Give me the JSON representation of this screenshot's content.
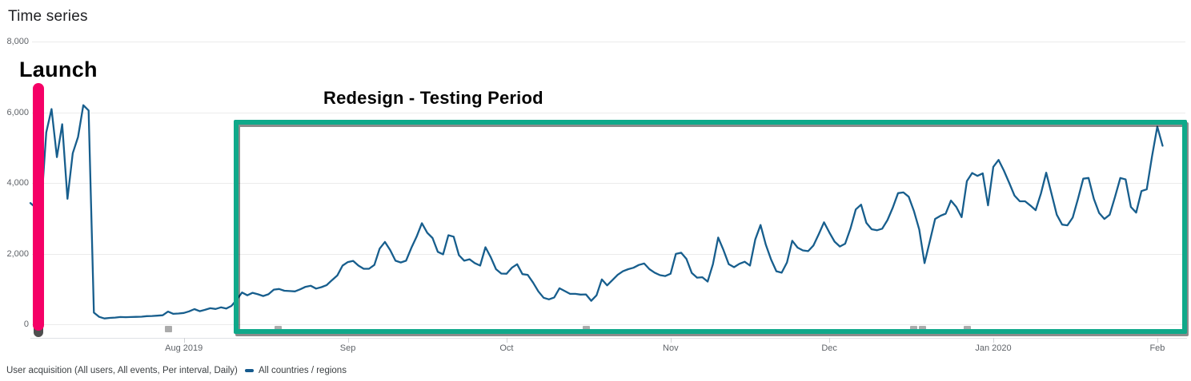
{
  "title": "Time series",
  "annotations": {
    "launch_label": "Launch",
    "launch_color": "#F50066",
    "redesign_label": "Redesign - Testing Period",
    "redesign_color": "#0FA98A",
    "note_markers_x": [
      210,
      347,
      732,
      1141,
      1152,
      1208
    ]
  },
  "footer": {
    "report_label": "User acquisition (All users, All events, Per interval, Daily)",
    "legend_label": "All countries / regions",
    "legend_color": "#155A8D"
  },
  "chart_data": {
    "type": "line",
    "title": "Time series",
    "series_name": "All countries / regions",
    "line_color": "#175E8D",
    "interval": "daily",
    "start_date": "2019-07-03",
    "end_date": "2020-02-02",
    "ylim": [
      0,
      8000
    ],
    "grid": true,
    "legend_position": "bottom",
    "yaxis_ticks": [
      {
        "label": "8,000",
        "value": 8000
      },
      {
        "label": "6,000",
        "value": 6000
      },
      {
        "label": "4,000",
        "value": 4000
      },
      {
        "label": "2,000",
        "value": 2000
      },
      {
        "label": "0",
        "value": 0
      }
    ],
    "xaxis_ticks": [
      {
        "label": "Aug 2019",
        "day_offset": 29
      },
      {
        "label": "Sep",
        "day_offset": 60
      },
      {
        "label": "Oct",
        "day_offset": 90
      },
      {
        "label": "Nov",
        "day_offset": 121
      },
      {
        "label": "Dec",
        "day_offset": 151
      },
      {
        "label": "Jan 2020",
        "day_offset": 182
      },
      {
        "label": "Feb",
        "day_offset": 213
      }
    ],
    "values": [
      3430,
      3300,
      3230,
      5430,
      6090,
      4730,
      5660,
      3550,
      4840,
      5300,
      6200,
      6050,
      330,
      210,
      165,
      180,
      190,
      205,
      200,
      205,
      210,
      215,
      230,
      235,
      245,
      255,
      360,
      295,
      305,
      320,
      365,
      430,
      370,
      410,
      455,
      435,
      480,
      445,
      520,
      700,
      900,
      820,
      890,
      850,
      800,
      850,
      980,
      1000,
      950,
      940,
      930,
      990,
      1060,
      1090,
      1010,
      1050,
      1110,
      1250,
      1380,
      1660,
      1760,
      1795,
      1660,
      1570,
      1570,
      1680,
      2140,
      2330,
      2100,
      1800,
      1750,
      1800,
      2160,
      2480,
      2860,
      2590,
      2440,
      2050,
      1980,
      2520,
      2480,
      1955,
      1800,
      1840,
      1730,
      1660,
      2180,
      1900,
      1560,
      1435,
      1430,
      1600,
      1700,
      1420,
      1400,
      1180,
      930,
      750,
      705,
      760,
      1020,
      940,
      860,
      860,
      840,
      845,
      665,
      820,
      1270,
      1100,
      1250,
      1400,
      1500,
      1560,
      1600,
      1680,
      1720,
      1560,
      1460,
      1390,
      1365,
      1430,
      1990,
      2025,
      1850,
      1450,
      1320,
      1330,
      1210,
      1700,
      2455,
      2100,
      1700,
      1615,
      1710,
      1770,
      1660,
      2400,
      2810,
      2250,
      1830,
      1500,
      1460,
      1750,
      2364,
      2170,
      2090,
      2070,
      2230,
      2550,
      2886,
      2600,
      2340,
      2200,
      2280,
      2705,
      3250,
      3386,
      2870,
      2690,
      2660,
      2705,
      2950,
      3300,
      3710,
      3730,
      3610,
      3200,
      2680,
      1730,
      2350,
      2980,
      3070,
      3130,
      3500,
      3320,
      3030,
      4050,
      4280,
      4200,
      4270,
      3364,
      4455,
      4650,
      4350,
      4000,
      3640,
      3480,
      3480,
      3360,
      3230,
      3700,
      4290,
      3700,
      3100,
      2820,
      2800,
      3020,
      3550,
      4120,
      4140,
      3550,
      3150,
      2980,
      3100,
      3600,
      4140,
      4100,
      3320,
      3160,
      3770,
      3820,
      4750,
      5590,
      5050
    ]
  }
}
